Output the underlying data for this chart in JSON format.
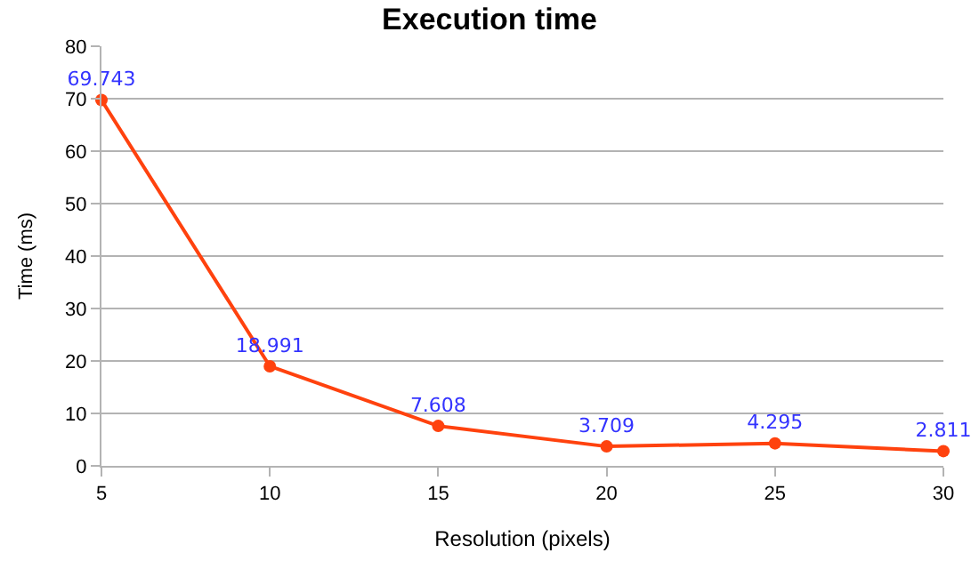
{
  "chart_data": {
    "type": "line",
    "title": "Execution time",
    "xlabel": "Resolution (pixels)",
    "ylabel": "Time (ms)",
    "x": [
      5,
      10,
      15,
      20,
      25,
      30
    ],
    "series": [
      {
        "color": "#ff420e",
        "values": [
          69.743,
          18.991,
          7.608,
          3.709,
          4.295,
          2.811
        ]
      }
    ],
    "xlim": [
      5,
      30
    ],
    "xticks": [
      5,
      10,
      15,
      20,
      25,
      30
    ],
    "ylim": [
      0,
      80
    ],
    "yticks": [
      0,
      10,
      20,
      30,
      40,
      50,
      60,
      70,
      80
    ],
    "grid": "y",
    "marker": "circle",
    "line_style": "solid",
    "data_labels": true,
    "legend": false
  }
}
